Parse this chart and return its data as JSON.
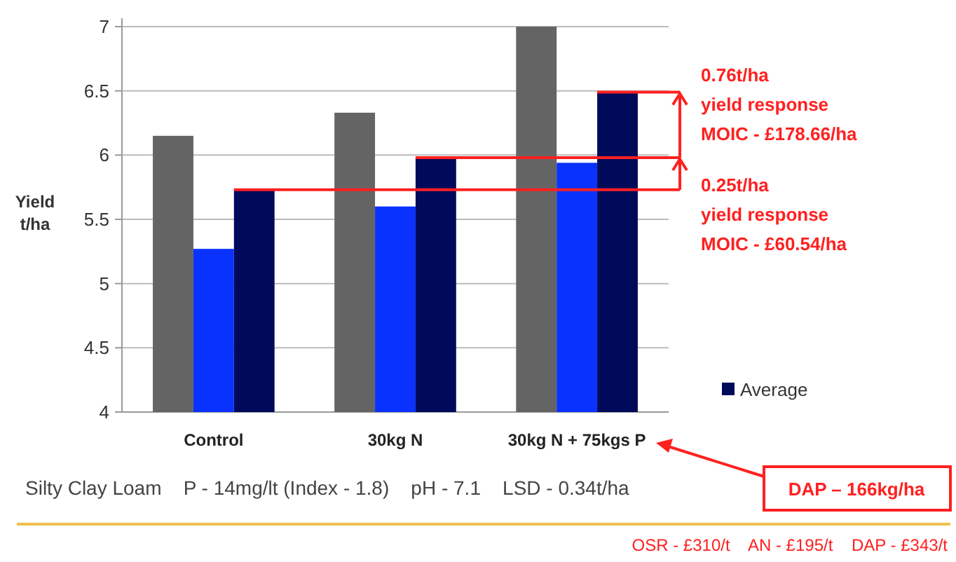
{
  "chart_data": {
    "type": "bar",
    "ylabel": "Yield t/ha",
    "categories": [
      "Control",
      "30kg N",
      "30kg N + 75kgs P"
    ],
    "series": [
      {
        "color": "#646464",
        "values": [
          6.15,
          6.33,
          7.0
        ]
      },
      {
        "color": "#0a32ff",
        "values": [
          5.27,
          5.6,
          5.94
        ]
      },
      {
        "name": "Average",
        "color": "#000a5a",
        "values": [
          5.73,
          5.98,
          6.49
        ]
      }
    ],
    "ylim": [
      4,
      7
    ],
    "yticks": [
      4,
      4.5,
      5,
      5.5,
      6,
      6.5,
      7
    ],
    "grid": "y",
    "legend": "right",
    "ref_lines": [
      {
        "axis": "y",
        "value": 5.73,
        "color": "#ff2020"
      },
      {
        "axis": "y",
        "value": 5.98,
        "color": "#ff2020"
      },
      {
        "axis": "y",
        "value": 6.49,
        "color": "#ff2020"
      }
    ],
    "annotations": [
      "0.76t/ha\nyield response\nMOIC - £178.66/ha",
      "0.25t/ha\nyield response\nMOIC - £60.54/ha",
      "DAP – 166kg/ha",
      "Silty Clay Loam    P - 14mg/lt (Index - 1.8)    pH - 7.1    LSD - 0.34t/ha",
      "OSR - £310/t    AN - £195/t    DAP - £343/t"
    ]
  }
}
